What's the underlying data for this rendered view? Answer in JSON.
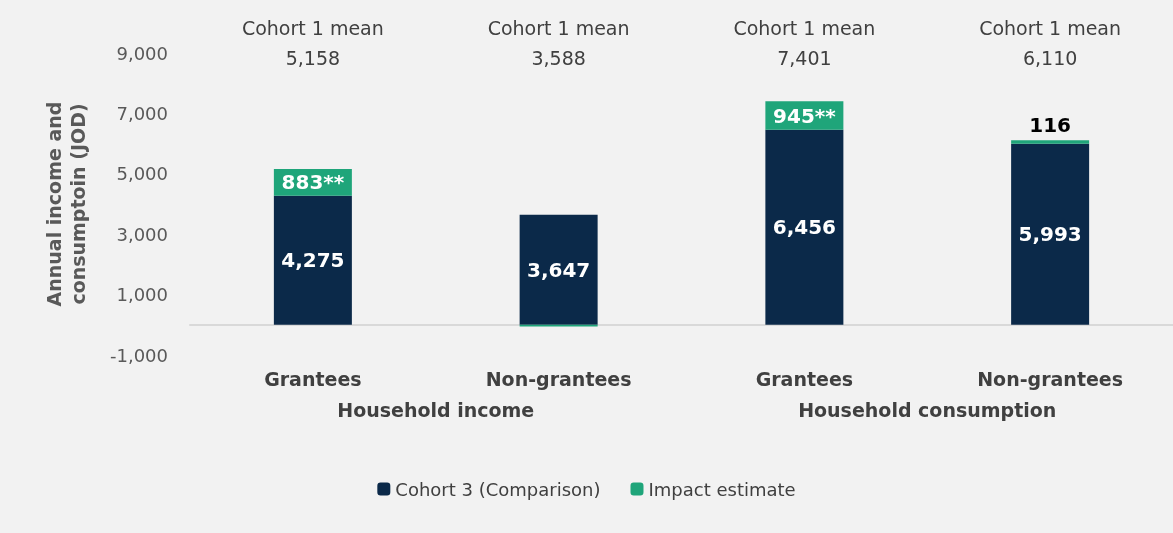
{
  "chart_data": {
    "type": "bar",
    "stacked": true,
    "ylabel": "Annual income and\nconsumptoin (JOD)",
    "categories": [
      "Grantees",
      "Non-grantees",
      "Grantees",
      "Non-grantees"
    ],
    "series": [
      {
        "name": "Cohort 3 (Comparison)",
        "color": "#0b2949",
        "values": [
          4275,
          3647,
          6456,
          5993
        ],
        "value_labels": [
          "4,275",
          "3,647",
          "6,456",
          "5,993"
        ]
      },
      {
        "name": "Impact estimate",
        "color": "#1fa57a",
        "values": [
          883,
          -59,
          945,
          116
        ],
        "value_labels": [
          "883**",
          null,
          "945**",
          "116"
        ]
      }
    ],
    "ylim": [
      -1000,
      9000
    ],
    "yticks": [
      {
        "value": -1000,
        "label": "-1,000"
      },
      {
        "value": 1000,
        "label": "1,000"
      },
      {
        "value": 3000,
        "label": "3,000"
      },
      {
        "value": 5000,
        "label": "5,000"
      },
      {
        "value": 7000,
        "label": "7,000"
      },
      {
        "value": 9000,
        "label": "9,000"
      }
    ],
    "grid": false,
    "legend": "bottom",
    "annotations": [
      "Cohort 1 mean\n5,158",
      "Cohort 1 mean\n3,588",
      "Cohort 1 mean\n7,401",
      "Cohort 1 mean\n6,110",
      "Household income",
      "Household consumption"
    ]
  }
}
